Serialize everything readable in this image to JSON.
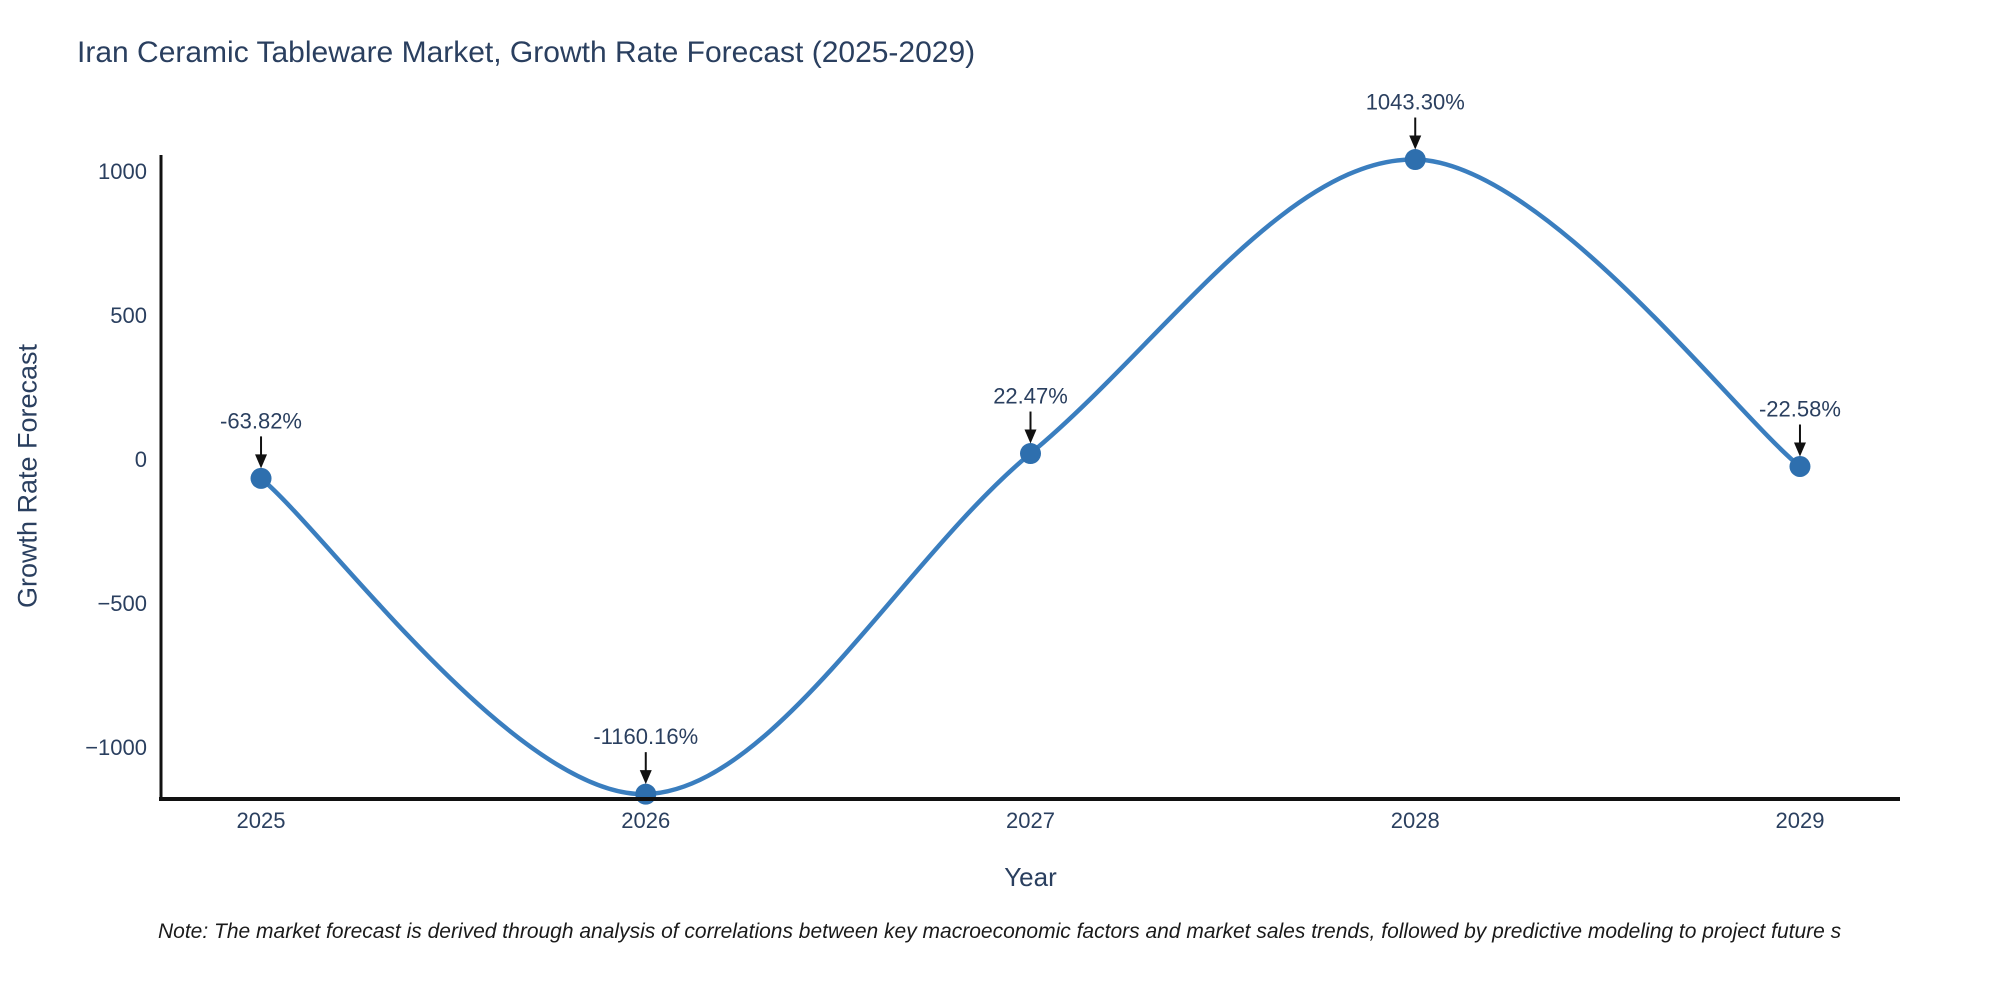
{
  "title": "Iran Ceramic Tableware Market, Growth Rate Forecast (2025-2029)",
  "note": "Note: The market forecast is derived through analysis of correlations between key macroeconomic factors and market sales trends, followed by predictive modeling to project future s",
  "theme": {
    "line": "#3a7ebf",
    "marker": "#2e6fae",
    "axis": "#111111",
    "text": "#2a3f5f",
    "note_text": "#1a1a1a",
    "background": "#ffffff"
  },
  "chart_data": {
    "type": "line",
    "curve": "spline",
    "title": "Iran Ceramic Tableware Market, Growth Rate Forecast (2025-2029)",
    "xlabel": "Year",
    "ylabel": "Growth Rate Forecast",
    "x": [
      2025,
      2026,
      2027,
      2028,
      2029
    ],
    "x_tick_labels": [
      "2025",
      "2026",
      "2027",
      "2028",
      "2029"
    ],
    "series": [
      {
        "name": "Growth Rate Forecast",
        "values": [
          -63.82,
          -1160.16,
          22.47,
          1043.3,
          -22.58
        ]
      }
    ],
    "point_labels": [
      "-63.82%",
      "-1160.16%",
      "22.47%",
      "1043.30%",
      "-22.58%"
    ],
    "y_ticks": [
      1000,
      500,
      0,
      -500,
      -1000
    ],
    "y_tick_labels": [
      "1000",
      "500",
      "0",
      "−500",
      "−1000"
    ],
    "ylim": [
      -1177,
      1059
    ],
    "xlim": [
      2024.74,
      2029.26
    ],
    "grid": false,
    "legend": "none",
    "markers": true,
    "annotations": "value label with downward arrow at each data point"
  }
}
